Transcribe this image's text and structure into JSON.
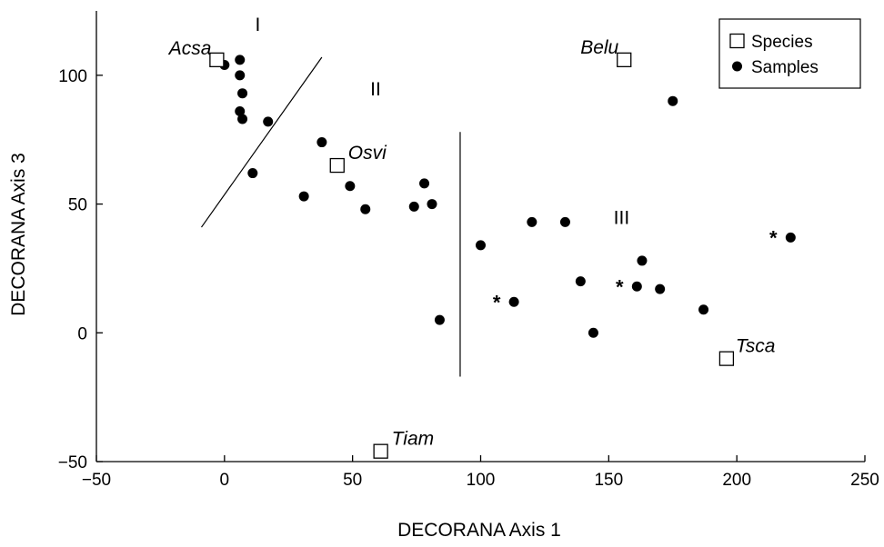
{
  "chart_data": {
    "type": "scatter",
    "xlabel": "DECORANA Axis 1",
    "ylabel": "DECORANA Axis 3",
    "xlim": [
      -50,
      250
    ],
    "ylim": [
      -50,
      125
    ],
    "xticks": [
      -50,
      0,
      50,
      100,
      150,
      200,
      250
    ],
    "yticks": [
      -50,
      0,
      50,
      100
    ],
    "xtick_labels": [
      "−50",
      "0",
      "50",
      "100",
      "150",
      "200",
      "250"
    ],
    "ytick_labels": [
      "−50",
      "0",
      "50",
      "100"
    ],
    "grid": false,
    "legend": {
      "placement": "top-right",
      "entries": [
        {
          "label": "Species",
          "marker": "open-square"
        },
        {
          "label": "Samples",
          "marker": "filled-circle"
        }
      ]
    },
    "series": [
      {
        "name": "Species",
        "marker": "open-square",
        "points": [
          {
            "x": -3,
            "y": 106,
            "label": "Acsa"
          },
          {
            "x": 44,
            "y": 65,
            "label": "Osvi"
          },
          {
            "x": 156,
            "y": 106,
            "label": "Belu"
          },
          {
            "x": 196,
            "y": -10,
            "label": "Tsca"
          },
          {
            "x": 61,
            "y": -46,
            "label": "Tiam"
          }
        ]
      },
      {
        "name": "Samples",
        "marker": "filled-circle",
        "points": [
          {
            "x": 0,
            "y": 104
          },
          {
            "x": 6,
            "y": 106
          },
          {
            "x": 6,
            "y": 100
          },
          {
            "x": 7,
            "y": 93
          },
          {
            "x": 6,
            "y": 86
          },
          {
            "x": 7,
            "y": 83
          },
          {
            "x": 17,
            "y": 82
          },
          {
            "x": 11,
            "y": 62
          },
          {
            "x": 38,
            "y": 74
          },
          {
            "x": 31,
            "y": 53
          },
          {
            "x": 49,
            "y": 57
          },
          {
            "x": 55,
            "y": 48
          },
          {
            "x": 74,
            "y": 49
          },
          {
            "x": 78,
            "y": 58
          },
          {
            "x": 81,
            "y": 50
          },
          {
            "x": 84,
            "y": 5
          },
          {
            "x": 100,
            "y": 34
          },
          {
            "x": 113,
            "y": 12,
            "marked": true
          },
          {
            "x": 120,
            "y": 43
          },
          {
            "x": 133,
            "y": 43
          },
          {
            "x": 139,
            "y": 20
          },
          {
            "x": 144,
            "y": 0
          },
          {
            "x": 161,
            "y": 18,
            "marked": true
          },
          {
            "x": 163,
            "y": 28
          },
          {
            "x": 170,
            "y": 17
          },
          {
            "x": 175,
            "y": 90
          },
          {
            "x": 187,
            "y": 9
          },
          {
            "x": 221,
            "y": 37,
            "marked": true
          }
        ]
      }
    ],
    "annotations": {
      "groups": [
        {
          "label": "I",
          "x": 13,
          "y": 120
        },
        {
          "label": "II",
          "x": 59,
          "y": 95
        },
        {
          "label": "III",
          "x": 155,
          "y": 45
        }
      ],
      "divider_lines": [
        {
          "x1": -9,
          "y1": 41,
          "x2": 38,
          "y2": 107
        },
        {
          "x1": 92,
          "y1": 78,
          "x2": 92,
          "y2": -17
        }
      ],
      "marker_symbol": "*"
    }
  }
}
